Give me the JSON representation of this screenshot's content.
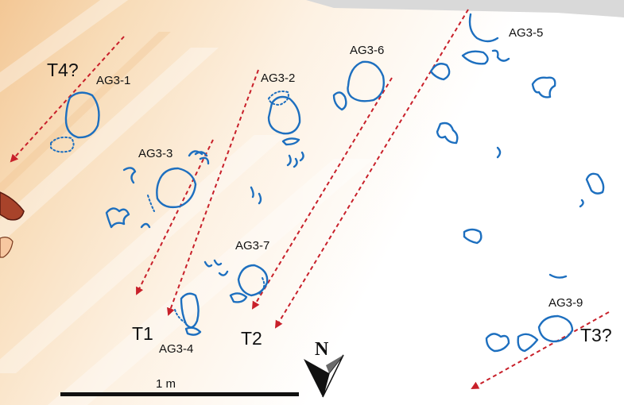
{
  "specimen_labels": {
    "ag3_1": "AG3-1",
    "ag3_2": "AG3-2",
    "ag3_3": "AG3-3",
    "ag3_4": "AG3-4",
    "ag3_5": "AG3-5",
    "ag3_6": "AG3-6",
    "ag3_7": "AG3-7",
    "ag3_9": "AG3-9"
  },
  "trackway_labels": {
    "t1": "T1",
    "t2": "T2",
    "t3": "T3?",
    "t4": "T4?"
  },
  "north_arrow": {
    "label": "N"
  },
  "scale_bar": {
    "label": "1 m"
  },
  "colors": {
    "footprint_outline": "#1d6fbf",
    "trackway_arrow": "#c8202a",
    "background_band": "#f6d9b0"
  }
}
